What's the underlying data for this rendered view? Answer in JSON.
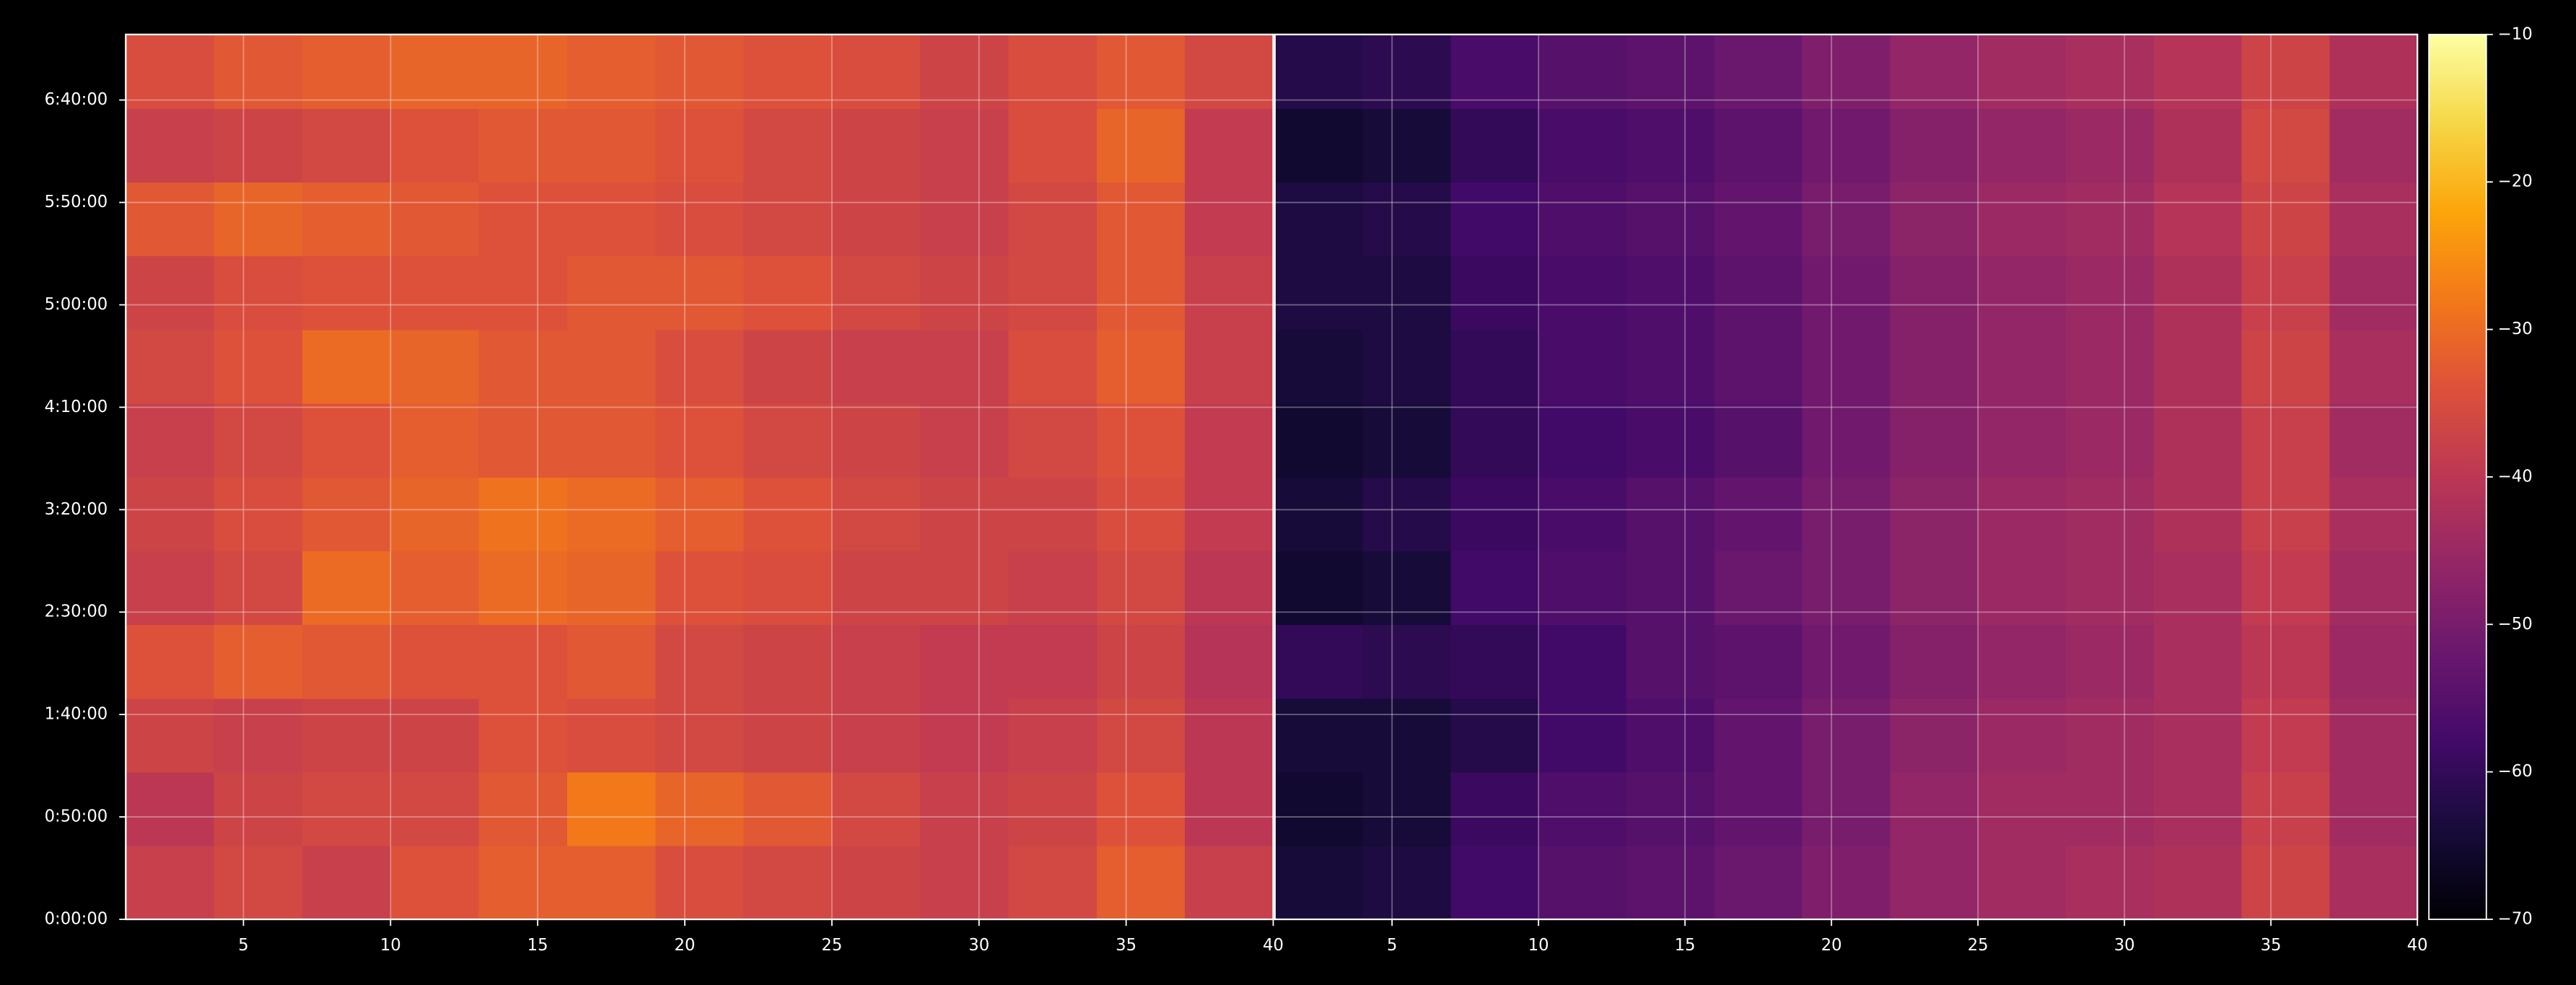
{
  "chart_data": [
    {
      "type": "heatmap",
      "colormap": "inferno",
      "grid": true,
      "xlim": [
        1,
        40
      ],
      "ylim": [
        0,
        432
      ],
      "xticks": [
        5,
        10,
        15,
        20,
        25,
        30,
        35,
        40
      ],
      "yticks": [
        {
          "value": 0,
          "label": "0:00:00"
        },
        {
          "value": 50,
          "label": "0:50:00"
        },
        {
          "value": 100,
          "label": "1:40:00"
        },
        {
          "value": 150,
          "label": "2:30:00"
        },
        {
          "value": 200,
          "label": "3:20:00"
        },
        {
          "value": 250,
          "label": "4:10:00"
        },
        {
          "value": 300,
          "label": "5:00:00"
        },
        {
          "value": 350,
          "label": "5:50:00"
        },
        {
          "value": 400,
          "label": "6:40:00"
        }
      ],
      "xbins": [
        1,
        4,
        7,
        10,
        13,
        16,
        19,
        22,
        25,
        28,
        31,
        34,
        37,
        40
      ],
      "ybins": [
        0,
        36,
        72,
        108,
        144,
        180,
        216,
        252,
        288,
        324,
        360,
        396,
        432
      ],
      "z": [
        [
          -38,
          -36,
          -38,
          -34,
          -32,
          -32,
          -35,
          -36,
          -37,
          -38,
          -36,
          -32,
          -38
        ],
        [
          -40,
          -37,
          -36,
          -36,
          -33,
          -28,
          -31,
          -33,
          -36,
          -38,
          -37,
          -34,
          -40
        ],
        [
          -37,
          -38,
          -37,
          -37,
          -34,
          -35,
          -36,
          -37,
          -38,
          -39,
          -38,
          -36,
          -40
        ],
        [
          -34,
          -32,
          -33,
          -34,
          -34,
          -33,
          -36,
          -37,
          -38,
          -39,
          -39,
          -37,
          -41
        ],
        [
          -38,
          -36,
          -30,
          -32,
          -30,
          -31,
          -34,
          -35,
          -37,
          -37,
          -38,
          -36,
          -40
        ],
        [
          -37,
          -35,
          -33,
          -31,
          -29,
          -30,
          -32,
          -34,
          -36,
          -37,
          -37,
          -35,
          -39
        ],
        [
          -38,
          -36,
          -34,
          -32,
          -33,
          -33,
          -34,
          -36,
          -37,
          -38,
          -36,
          -34,
          -39
        ],
        [
          -36,
          -34,
          -30,
          -31,
          -33,
          -33,
          -35,
          -37,
          -38,
          -38,
          -35,
          -32,
          -38
        ],
        [
          -37,
          -35,
          -34,
          -34,
          -34,
          -33,
          -33,
          -34,
          -36,
          -37,
          -36,
          -33,
          -38
        ],
        [
          -33,
          -31,
          -32,
          -33,
          -34,
          -34,
          -35,
          -36,
          -37,
          -38,
          -36,
          -33,
          -39
        ],
        [
          -38,
          -37,
          -36,
          -34,
          -33,
          -33,
          -34,
          -36,
          -37,
          -38,
          -35,
          -31,
          -39
        ],
        [
          -35,
          -33,
          -32,
          -31,
          -31,
          -32,
          -33,
          -34,
          -35,
          -37,
          -35,
          -33,
          -36
        ]
      ]
    },
    {
      "type": "heatmap",
      "colormap": "inferno",
      "grid": true,
      "xlim": [
        1,
        40
      ],
      "ylim": [
        0,
        432
      ],
      "xticks": [
        5,
        10,
        15,
        20,
        25,
        30,
        35,
        40
      ],
      "xbins": [
        1,
        4,
        7,
        10,
        13,
        16,
        19,
        22,
        25,
        28,
        31,
        34,
        37,
        40
      ],
      "ybins": [
        0,
        36,
        72,
        108,
        144,
        180,
        216,
        252,
        288,
        324,
        360,
        396,
        432
      ],
      "z": [
        [
          -64,
          -63,
          -58,
          -55,
          -54,
          -52,
          -49,
          -46,
          -44,
          -43,
          -42,
          -37,
          -43
        ],
        [
          -65,
          -64,
          -59,
          -56,
          -55,
          -53,
          -50,
          -46,
          -44,
          -44,
          -43,
          -38,
          -44
        ],
        [
          -64,
          -64,
          -62,
          -58,
          -56,
          -53,
          -50,
          -47,
          -45,
          -44,
          -43,
          -39,
          -44
        ],
        [
          -60,
          -61,
          -60,
          -58,
          -55,
          -54,
          -51,
          -48,
          -46,
          -45,
          -43,
          -40,
          -45
        ],
        [
          -65,
          -64,
          -58,
          -56,
          -55,
          -52,
          -50,
          -47,
          -45,
          -44,
          -43,
          -39,
          -44
        ],
        [
          -64,
          -62,
          -59,
          -57,
          -55,
          -53,
          -50,
          -47,
          -45,
          -44,
          -42,
          -38,
          -43
        ],
        [
          -65,
          -64,
          -60,
          -58,
          -57,
          -55,
          -51,
          -48,
          -46,
          -45,
          -42,
          -38,
          -44
        ],
        [
          -64,
          -63,
          -60,
          -57,
          -56,
          -54,
          -51,
          -48,
          -46,
          -45,
          -42,
          -37,
          -43
        ],
        [
          -63,
          -63,
          -59,
          -57,
          -56,
          -54,
          -51,
          -48,
          -46,
          -45,
          -42,
          -38,
          -44
        ],
        [
          -63,
          -62,
          -58,
          -56,
          -55,
          -53,
          -50,
          -47,
          -45,
          -44,
          -41,
          -37,
          -43
        ],
        [
          -65,
          -64,
          -60,
          -57,
          -56,
          -54,
          -51,
          -48,
          -46,
          -45,
          -42,
          -36,
          -44
        ],
        [
          -62,
          -61,
          -57,
          -55,
          -54,
          -52,
          -49,
          -46,
          -44,
          -43,
          -41,
          -37,
          -42
        ]
      ],
      "zlim": [
        -70,
        -10
      ],
      "zticks": [
        {
          "value": -70,
          "label": "−70"
        },
        {
          "value": -60,
          "label": "−60"
        },
        {
          "value": -50,
          "label": "−50"
        },
        {
          "value": -40,
          "label": "−40"
        },
        {
          "value": -30,
          "label": "−30"
        },
        {
          "value": -20,
          "label": "−20"
        },
        {
          "value": -10,
          "label": "−10"
        }
      ]
    }
  ]
}
